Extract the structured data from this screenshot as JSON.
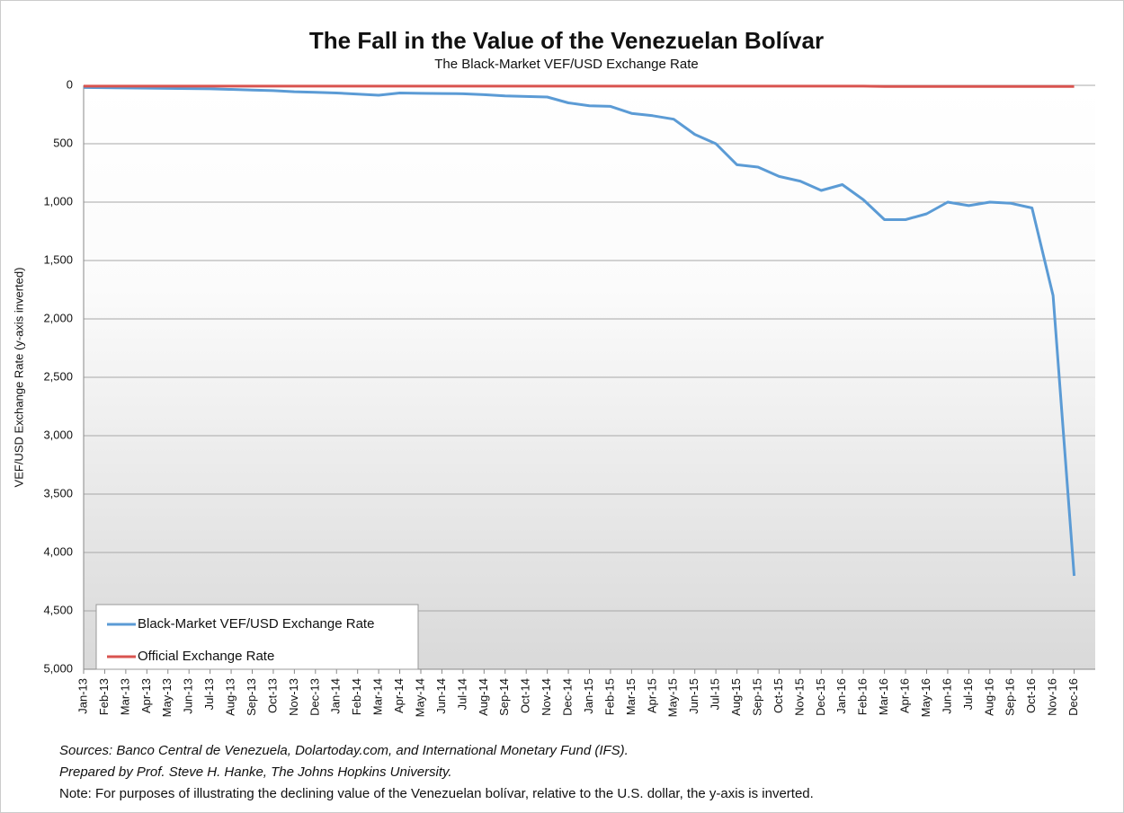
{
  "chart_data": {
    "type": "line",
    "title": "The Fall in the Value of the Venezuelan Bolívar",
    "subtitle": "The Black-Market VEF/USD Exchange Rate",
    "y_label": "VEF/USD Exchange Rate (y-axis inverted)",
    "categories": [
      "Jan-13",
      "Feb-13",
      "Mar-13",
      "Apr-13",
      "May-13",
      "Jun-13",
      "Jul-13",
      "Aug-13",
      "Sep-13",
      "Oct-13",
      "Nov-13",
      "Dec-13",
      "Jan-14",
      "Feb-14",
      "Mar-14",
      "Apr-14",
      "May-14",
      "Jun-14",
      "Jul-14",
      "Aug-14",
      "Sep-14",
      "Oct-14",
      "Nov-14",
      "Dec-14",
      "Jan-15",
      "Feb-15",
      "Mar-15",
      "Apr-15",
      "May-15",
      "Jun-15",
      "Jul-15",
      "Aug-15",
      "Sep-15",
      "Oct-15",
      "Nov-15",
      "Dec-15",
      "Jan-16",
      "Feb-16",
      "Mar-16",
      "Apr-16",
      "May-16",
      "Jun-16",
      "Jul-16",
      "Aug-16",
      "Sep-16",
      "Oct-16",
      "Nov-16",
      "Dec-16"
    ],
    "series": [
      {
        "name": "Black-Market VEF/USD Exchange Rate",
        "color": "#5b9bd5",
        "values": [
          18,
          20,
          22,
          24,
          26,
          28,
          30,
          35,
          40,
          45,
          55,
          60,
          65,
          75,
          85,
          65,
          68,
          70,
          72,
          80,
          90,
          95,
          100,
          150,
          175,
          180,
          240,
          260,
          290,
          420,
          500,
          680,
          700,
          780,
          820,
          900,
          850,
          980,
          1150,
          1150,
          1100,
          1000,
          1030,
          1000,
          1010,
          1050,
          1800,
          4200
        ]
      },
      {
        "name": "Official Exchange Rate",
        "color": "#d9534f",
        "values": [
          6.3,
          6.3,
          6.3,
          6.3,
          6.3,
          6.3,
          6.3,
          6.3,
          6.3,
          6.3,
          6.3,
          6.3,
          6.3,
          6.3,
          6.3,
          6.3,
          6.3,
          6.3,
          6.3,
          6.3,
          6.3,
          6.3,
          6.3,
          6.3,
          6.3,
          6.3,
          6.3,
          6.3,
          6.3,
          6.3,
          6.3,
          6.3,
          6.3,
          6.3,
          6.3,
          6.3,
          6.3,
          6.3,
          10,
          10,
          10,
          10,
          10,
          10,
          10,
          10,
          10,
          10
        ]
      }
    ],
    "ylim": [
      0,
      5000
    ],
    "invert_y": true,
    "yticks": [
      0,
      500,
      {
        "value": 1000,
        "label": "1,000"
      },
      {
        "value": 1500,
        "label": "1,500"
      },
      {
        "value": 2000,
        "label": "2,000"
      },
      {
        "value": 2500,
        "label": "2,500"
      },
      {
        "value": 3000,
        "label": "3,000"
      },
      {
        "value": 3500,
        "label": "3,500"
      },
      {
        "value": 4000,
        "label": "4,000"
      },
      {
        "value": 4500,
        "label": "4,500"
      },
      {
        "value": 5000,
        "label": "5,000"
      }
    ],
    "grid": true,
    "legend": "lower left",
    "notes": [
      "Sources: Banco Central de Venezuela, Dolartoday.com, and International Monetary Fund (IFS).",
      "Prepared by Prof. Steve H. Hanke, The Johns Hopkins University.",
      "Note: For purposes of illustrating the declining value of the Venezuelan bolívar, relative to the U.S. dollar, the y-axis is inverted."
    ]
  }
}
